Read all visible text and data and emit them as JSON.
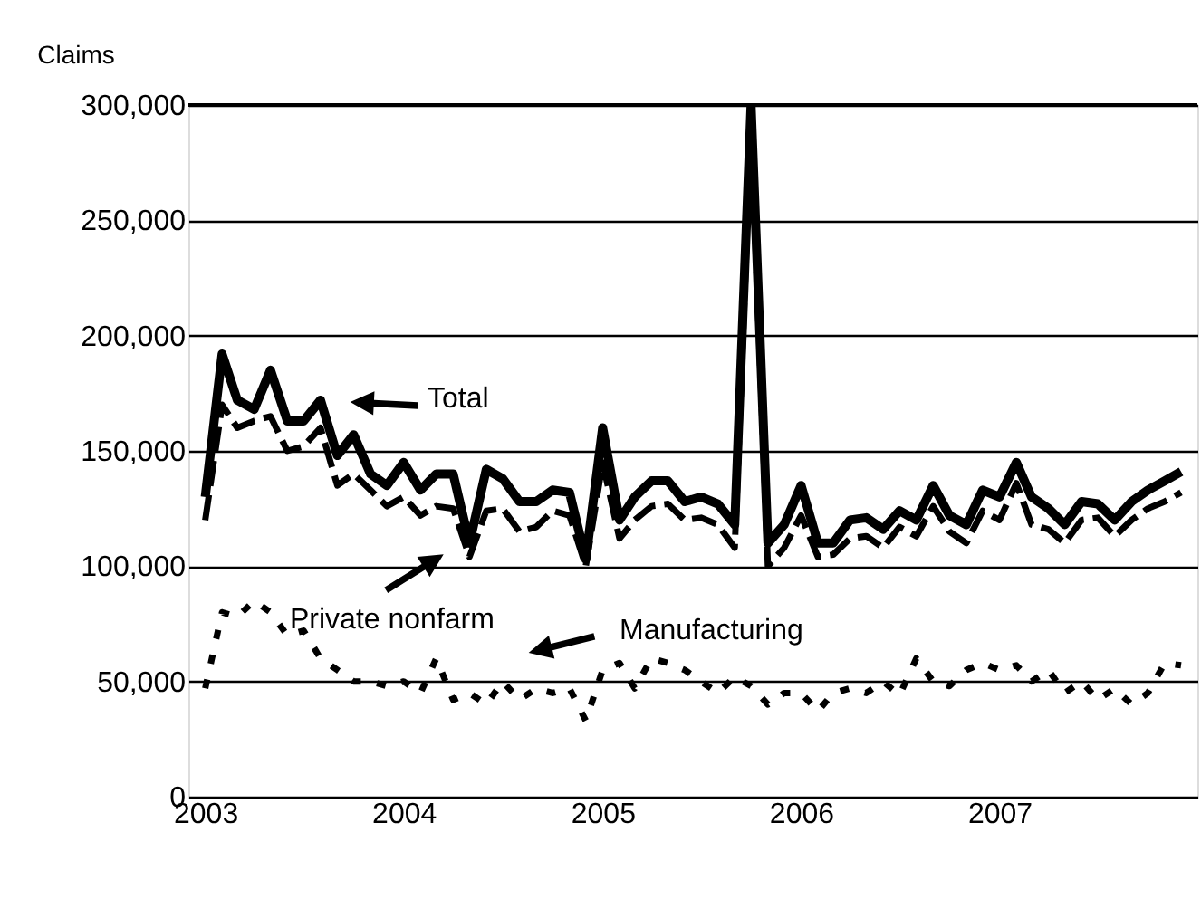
{
  "chart_data": {
    "type": "line",
    "ylabel": "Claims",
    "x": [
      "2003-01",
      "2003-02",
      "2003-03",
      "2003-04",
      "2003-05",
      "2003-06",
      "2003-07",
      "2003-08",
      "2003-09",
      "2003-10",
      "2003-11",
      "2003-12",
      "2004-01",
      "2004-02",
      "2004-03",
      "2004-04",
      "2004-05",
      "2004-06",
      "2004-07",
      "2004-08",
      "2004-09",
      "2004-10",
      "2004-11",
      "2004-12",
      "2005-01",
      "2005-02",
      "2005-03",
      "2005-04",
      "2005-05",
      "2005-06",
      "2005-07",
      "2005-08",
      "2005-09",
      "2005-10",
      "2005-11",
      "2005-12",
      "2006-01",
      "2006-02",
      "2006-03",
      "2006-04",
      "2006-05",
      "2006-06",
      "2006-07",
      "2006-08",
      "2006-09",
      "2006-10",
      "2006-11",
      "2006-12",
      "2007-01",
      "2007-02",
      "2007-03",
      "2007-04",
      "2007-05",
      "2007-06",
      "2007-07",
      "2007-08",
      "2007-09",
      "2007-10",
      "2007-11",
      "2007-12"
    ],
    "series": [
      {
        "color": "#000000",
        "line_style": "solid",
        "values": [
          130000,
          192000,
          172000,
          168000,
          185000,
          163000,
          163000,
          172000,
          148000,
          157000,
          140000,
          135000,
          145000,
          133000,
          140000,
          140000,
          110000,
          142000,
          138000,
          128000,
          128000,
          133000,
          132000,
          103000,
          160000,
          120000,
          130000,
          137000,
          137000,
          128000,
          130000,
          127000,
          118000,
          300000,
          110000,
          118000,
          135000,
          110000,
          110000,
          120000,
          121000,
          116000,
          124000,
          120000,
          135000,
          122000,
          118000,
          133000,
          130000,
          145000,
          130000,
          125000,
          118000,
          128000,
          127000,
          120000,
          128000,
          133000,
          137000,
          141000
        ]
      },
      {
        "color": "#000000",
        "line_style": "dashed",
        "values": [
          120000,
          170000,
          160000,
          163000,
          165000,
          150000,
          152000,
          160000,
          135000,
          140000,
          133000,
          126000,
          130000,
          122000,
          126000,
          125000,
          104000,
          124000,
          125000,
          115000,
          117000,
          124000,
          122000,
          100000,
          145000,
          112000,
          120000,
          126000,
          127000,
          120000,
          121000,
          118000,
          108000,
          290000,
          100000,
          108000,
          122000,
          104000,
          105000,
          112000,
          113000,
          108000,
          117000,
          113000,
          126000,
          115000,
          110000,
          124000,
          120000,
          136000,
          118000,
          116000,
          110000,
          120000,
          121000,
          113000,
          120000,
          125000,
          128000,
          132000
        ]
      },
      {
        "color": "#000000",
        "line_style": "dotted",
        "values": [
          47000,
          80000,
          78000,
          85000,
          80000,
          70000,
          72000,
          60000,
          55000,
          50000,
          50000,
          48000,
          50000,
          45000,
          60000,
          42000,
          45000,
          40000,
          50000,
          42000,
          47000,
          45000,
          47000,
          33000,
          55000,
          58000,
          47000,
          60000,
          58000,
          55000,
          50000,
          45000,
          52000,
          48000,
          40000,
          45000,
          45000,
          37000,
          45000,
          47000,
          45000,
          50000,
          44000,
          60000,
          50000,
          48000,
          55000,
          58000,
          55000,
          57000,
          50000,
          55000,
          45000,
          50000,
          42000,
          47000,
          40000,
          45000,
          58000,
          57000
        ]
      }
    ],
    "xlim": [
      "2002-12-01",
      "2007-12-31"
    ],
    "xticks": [
      {
        "value": "2003-01-01",
        "label": "2003"
      },
      {
        "value": "2004-01-01",
        "label": "2004"
      },
      {
        "value": "2005-01-01",
        "label": "2005"
      },
      {
        "value": "2006-01-01",
        "label": "2006"
      },
      {
        "value": "2007-01-01",
        "label": "2007"
      }
    ],
    "ylim": [
      0,
      300000
    ],
    "yticks": [
      {
        "value": 0,
        "label": "0"
      },
      {
        "value": 50000,
        "label": "50,000"
      },
      {
        "value": 100000,
        "label": "100,000"
      },
      {
        "value": 150000,
        "label": "150,000"
      },
      {
        "value": 200000,
        "label": "200,000"
      },
      {
        "value": 250000,
        "label": "250,000"
      },
      {
        "value": 300000,
        "label": "300,000"
      }
    ],
    "grid": "y",
    "marker": "none",
    "annotations": [
      "Total",
      "Private nonfarm",
      "Manufacturing"
    ]
  }
}
